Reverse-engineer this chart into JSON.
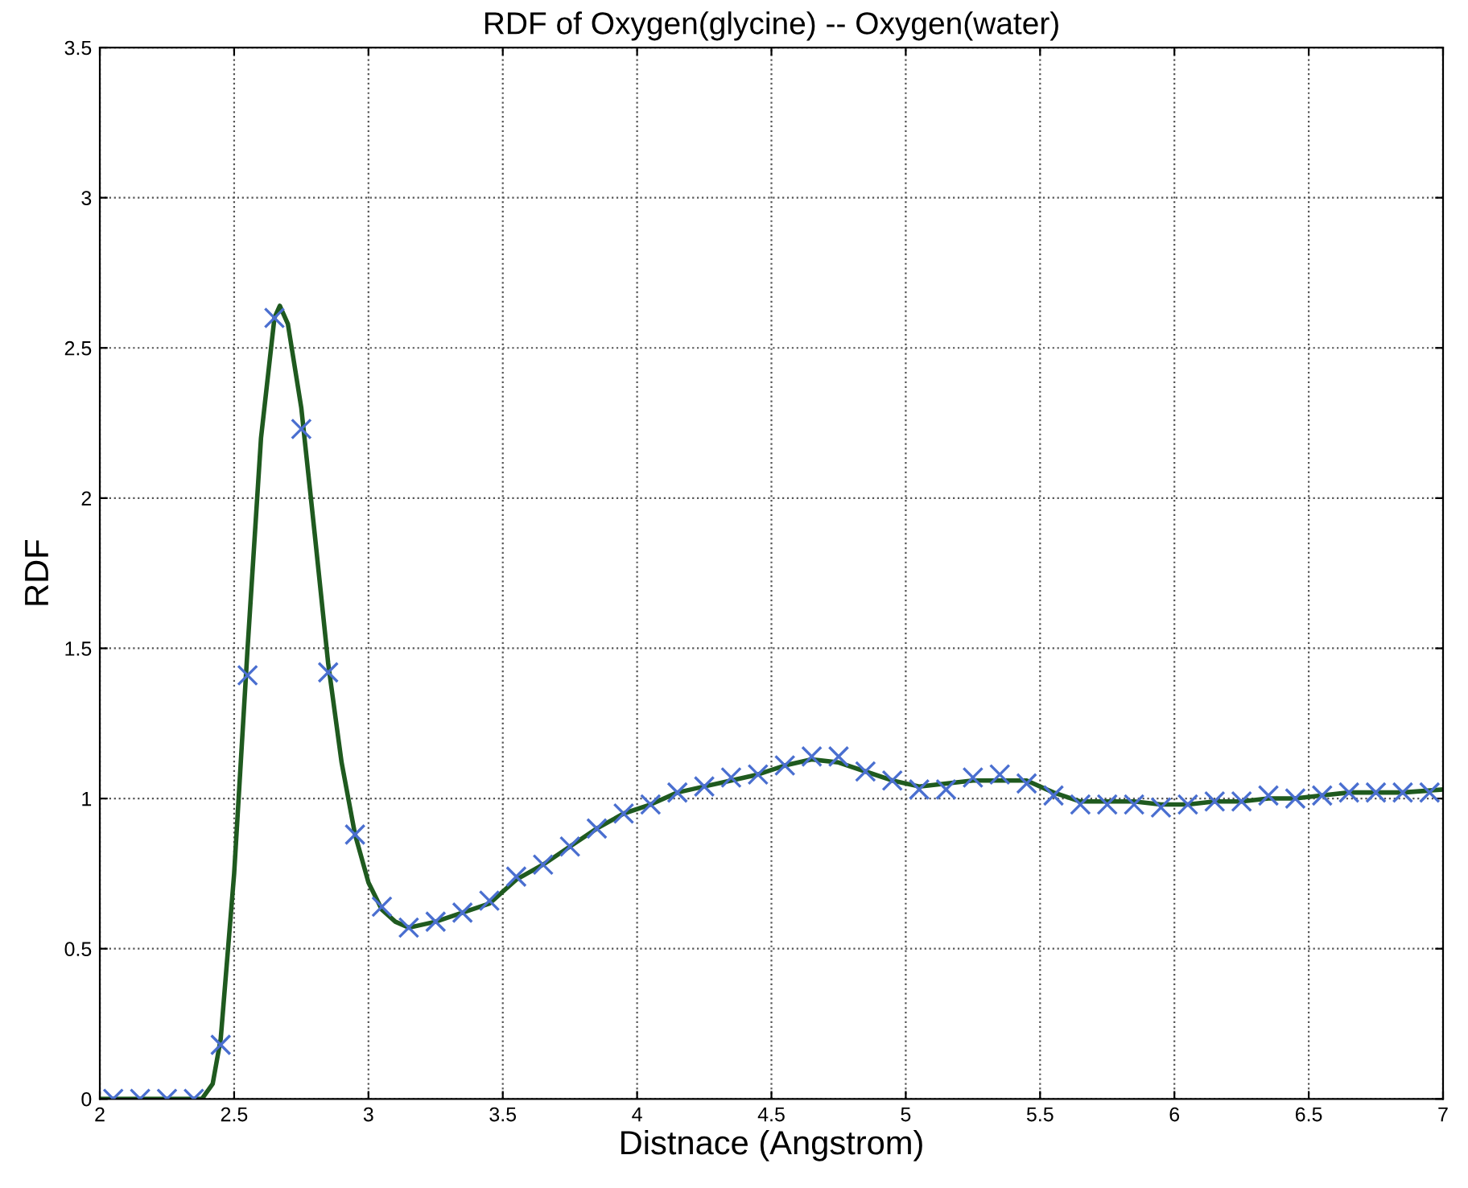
{
  "chart_data": {
    "type": "scatter",
    "title": "RDF of Oxygen(glycine) -- Oxygen(water)",
    "xlabel": "Distnace (Angstrom)",
    "ylabel": "RDF",
    "xlim": [
      2,
      7
    ],
    "xticks": [
      2,
      2.5,
      3,
      3.5,
      4,
      4.5,
      5,
      5.5,
      6,
      6.5,
      7
    ],
    "ylim": [
      0,
      3.5
    ],
    "yticks": [
      0,
      0.5,
      1,
      1.5,
      2,
      2.5,
      3,
      3.5
    ],
    "grid": true,
    "series": [
      {
        "type": "line",
        "color": "#1f5a1f",
        "marker": "none",
        "line_style": "solid",
        "x": [
          2.0,
          2.38,
          2.42,
          2.45,
          2.5,
          2.55,
          2.6,
          2.65,
          2.67,
          2.7,
          2.75,
          2.8,
          2.85,
          2.9,
          2.95,
          3.0,
          3.05,
          3.1,
          3.15,
          3.25,
          3.35,
          3.45,
          3.55,
          3.65,
          3.75,
          3.85,
          3.95,
          4.05,
          4.15,
          4.25,
          4.35,
          4.45,
          4.55,
          4.65,
          4.75,
          4.85,
          4.95,
          5.05,
          5.15,
          5.25,
          5.35,
          5.45,
          5.55,
          5.65,
          5.75,
          5.85,
          5.95,
          6.05,
          6.15,
          6.25,
          6.35,
          6.45,
          6.55,
          6.65,
          6.75,
          6.85,
          7.0
        ],
        "values": [
          0,
          0,
          0.05,
          0.2,
          0.75,
          1.5,
          2.2,
          2.6,
          2.64,
          2.58,
          2.3,
          1.88,
          1.45,
          1.12,
          0.88,
          0.72,
          0.63,
          0.59,
          0.57,
          0.59,
          0.62,
          0.65,
          0.73,
          0.78,
          0.84,
          0.9,
          0.95,
          0.98,
          1.02,
          1.04,
          1.06,
          1.08,
          1.11,
          1.13,
          1.12,
          1.09,
          1.06,
          1.04,
          1.05,
          1.06,
          1.06,
          1.06,
          1.02,
          0.99,
          0.99,
          0.99,
          0.98,
          0.98,
          0.99,
          0.99,
          1.0,
          1.0,
          1.01,
          1.02,
          1.02,
          1.02,
          1.03
        ]
      },
      {
        "color": "#4a6fd0",
        "marker": "cross",
        "x": [
          2.05,
          2.15,
          2.25,
          2.35,
          2.45,
          2.55,
          2.65,
          2.75,
          2.85,
          2.95,
          3.05,
          3.15,
          3.25,
          3.35,
          3.45,
          3.55,
          3.65,
          3.75,
          3.85,
          3.95,
          4.05,
          4.15,
          4.25,
          4.35,
          4.45,
          4.55,
          4.65,
          4.75,
          4.85,
          4.95,
          5.05,
          5.15,
          5.25,
          5.35,
          5.45,
          5.55,
          5.65,
          5.75,
          5.85,
          5.95,
          6.05,
          6.15,
          6.25,
          6.35,
          6.45,
          6.55,
          6.65,
          6.75,
          6.85,
          6.95
        ],
        "values": [
          0,
          0,
          0,
          0,
          0.18,
          1.41,
          2.6,
          2.23,
          1.42,
          0.88,
          0.64,
          0.57,
          0.59,
          0.62,
          0.66,
          0.74,
          0.78,
          0.84,
          0.9,
          0.95,
          0.98,
          1.02,
          1.04,
          1.07,
          1.08,
          1.11,
          1.14,
          1.14,
          1.09,
          1.06,
          1.03,
          1.03,
          1.07,
          1.08,
          1.05,
          1.01,
          0.98,
          0.98,
          0.98,
          0.97,
          0.98,
          0.99,
          0.99,
          1.01,
          1.0,
          1.01,
          1.02,
          1.02,
          1.02,
          1.02
        ]
      }
    ]
  }
}
